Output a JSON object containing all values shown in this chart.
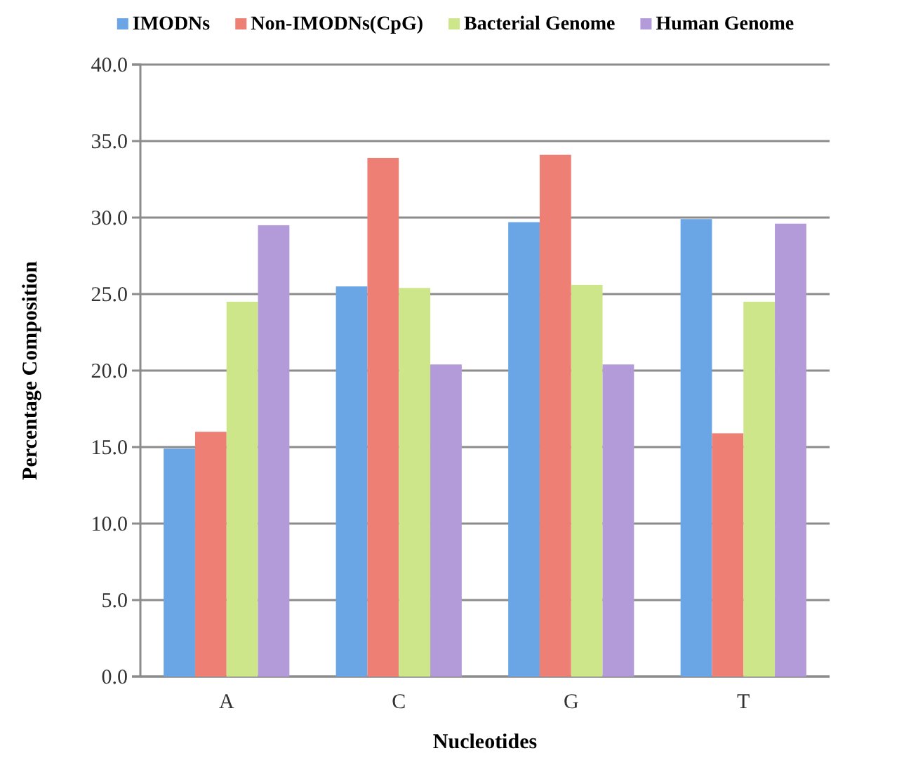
{
  "chart_data": {
    "type": "bar",
    "xlabel": "Nucleotides",
    "ylabel": "Percentage Composition",
    "categories": [
      "A",
      "C",
      "G",
      "T"
    ],
    "series": [
      {
        "name": "IMODNs",
        "color": "#6aa6e6",
        "values": [
          14.9,
          25.5,
          29.7,
          29.9
        ]
      },
      {
        "name": "Non-IMODNs(CpG)",
        "color": "#ee7f74",
        "values": [
          16.0,
          33.9,
          34.1,
          15.9
        ]
      },
      {
        "name": "Bacterial Genome",
        "color": "#cde68a",
        "values": [
          24.5,
          25.4,
          25.6,
          24.5
        ]
      },
      {
        "name": "Human Genome",
        "color": "#b39ad8",
        "values": [
          29.5,
          20.4,
          20.4,
          29.6
        ]
      }
    ],
    "ylim": [
      0,
      40
    ],
    "yticks": [
      {
        "value": 0,
        "label": "0.0"
      },
      {
        "value": 5,
        "label": "5.0"
      },
      {
        "value": 10,
        "label": "10.0"
      },
      {
        "value": 15,
        "label": "15.0"
      },
      {
        "value": 20,
        "label": "20.0"
      },
      {
        "value": 25,
        "label": "25.0"
      },
      {
        "value": 30,
        "label": "30.0"
      },
      {
        "value": 35,
        "label": "35.0"
      },
      {
        "value": 40,
        "label": "40.0"
      }
    ],
    "grid": "y",
    "legend": "top"
  }
}
